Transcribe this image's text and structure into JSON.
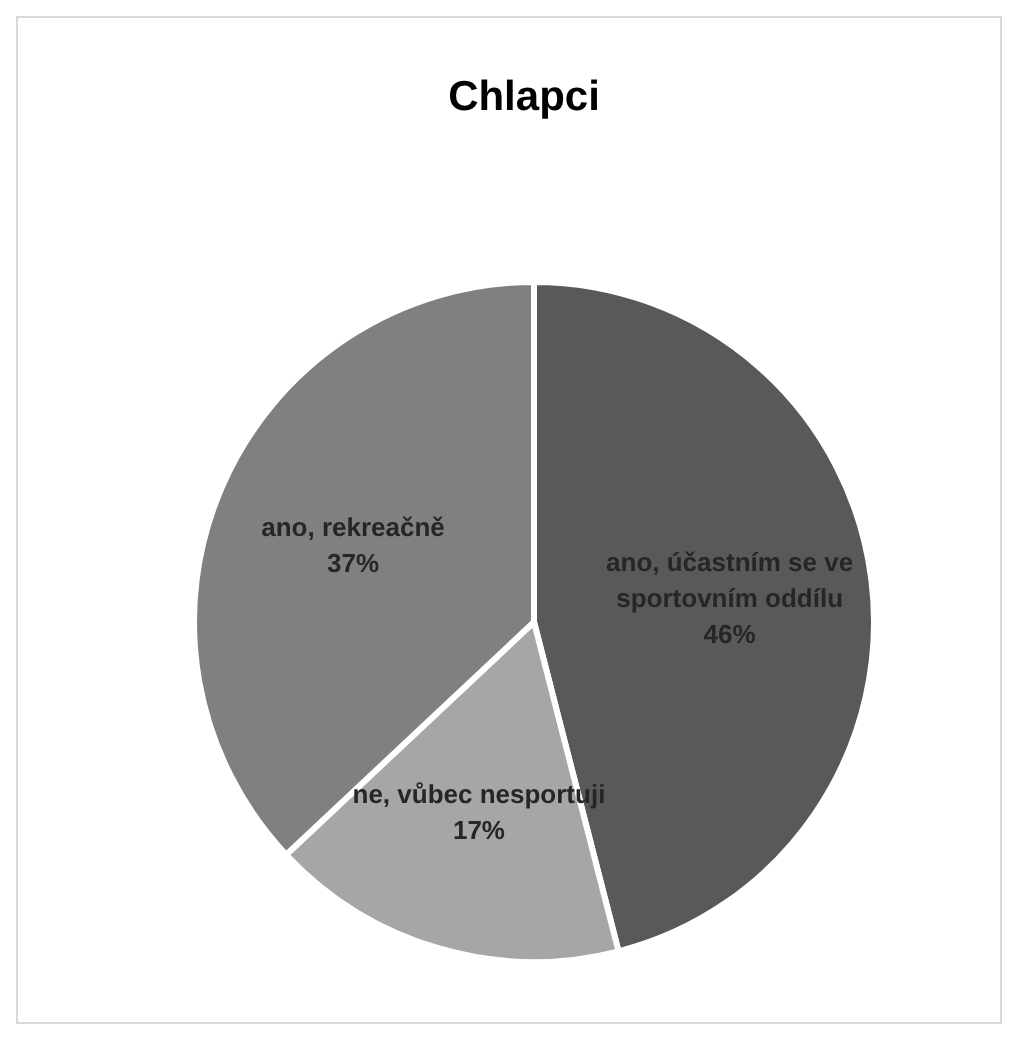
{
  "chart_data": {
    "type": "pie",
    "title": "Chlapci",
    "categories": [
      "ano, účastním se ve sportovním oddílu",
      "ne, vůbec nesportuji",
      "ano, rekreačně"
    ],
    "values": [
      46,
      17,
      37
    ],
    "value_labels": [
      "46%",
      "17%",
      "37%"
    ],
    "colors": [
      "#595959",
      "#a6a6a6",
      "#808080"
    ]
  }
}
